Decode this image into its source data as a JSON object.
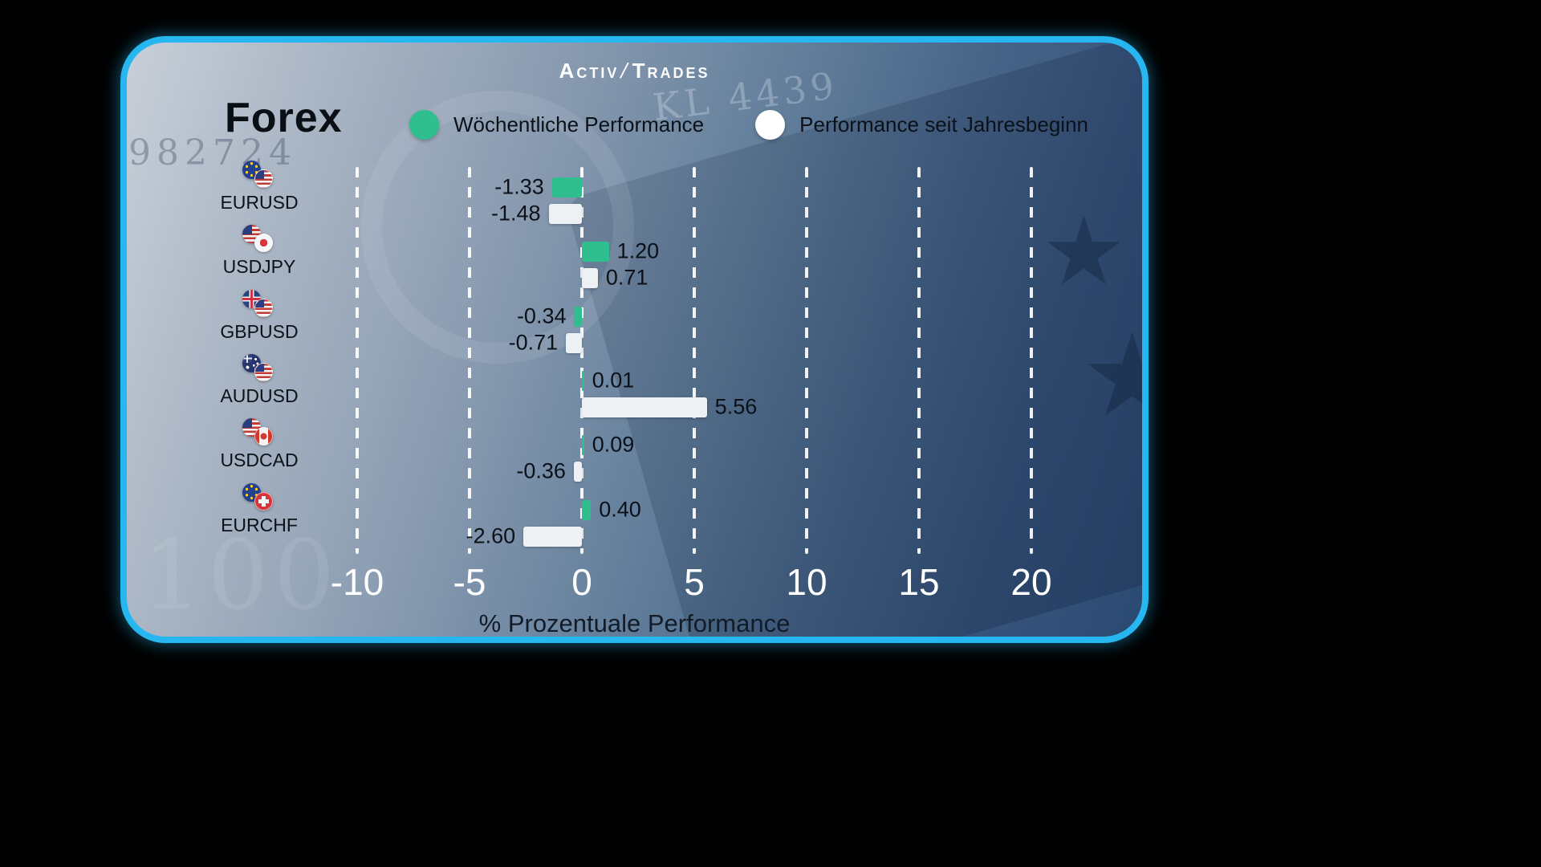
{
  "brand": {
    "left": "Activ",
    "slash": "/",
    "right": "Trades"
  },
  "title": "Forex",
  "legend": [
    {
      "label": "Wöchentliche Performance",
      "color": "#2fbe8e"
    },
    {
      "label": "Performance seit Jahresbeginn",
      "color": "#ffffff"
    }
  ],
  "chart_data": {
    "type": "bar",
    "orientation": "horizontal",
    "title": "Forex",
    "xlabel": "% Prozentuale Performance",
    "categories": [
      "EURUSD",
      "USDJPY",
      "GBPUSD",
      "AUDUSD",
      "USDCAD",
      "EURCHF"
    ],
    "flag_pairs": [
      [
        "eu",
        "us"
      ],
      [
        "us",
        "jp"
      ],
      [
        "gb",
        "us"
      ],
      [
        "au",
        "us"
      ],
      [
        "us",
        "ca"
      ],
      [
        "eu",
        "ch"
      ]
    ],
    "series": [
      {
        "name": "Wöchentliche Performance",
        "color": "#2fbe8e",
        "values": [
          -1.33,
          1.2,
          -0.34,
          0.01,
          0.09,
          0.4
        ]
      },
      {
        "name": "Performance seit Jahresbeginn",
        "color": "#eef1f4",
        "values": [
          -1.48,
          0.71,
          -0.71,
          5.56,
          -0.36,
          -2.6
        ]
      }
    ],
    "value_labels": [
      [
        "-1.33",
        "-1.48"
      ],
      [
        "1.20",
        "0.71"
      ],
      [
        "-0.34",
        "-0.71"
      ],
      [
        "0.01",
        "5.56"
      ],
      [
        "0.09",
        "-0.36"
      ],
      [
        "0.40",
        "-2.60"
      ]
    ],
    "x_ticks": [
      -10,
      -5,
      0,
      5,
      10,
      15,
      20
    ],
    "xlim": [
      -12.5,
      22.5
    ],
    "grid": "dashed-vertical-white",
    "legend_position": "top"
  },
  "background_art": {
    "serial_left": "982724",
    "serial_right": "KL 4439",
    "hundred": "100"
  }
}
